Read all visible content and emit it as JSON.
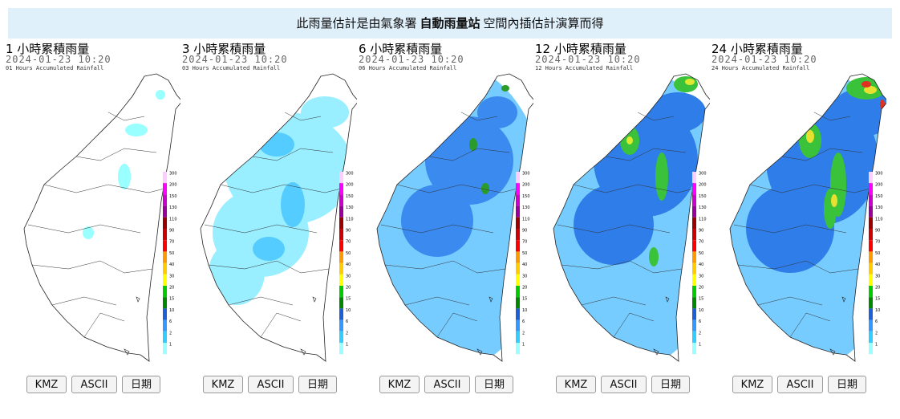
{
  "banner": {
    "text_before": "此雨量估計是由氣象署",
    "text_bold": "自動雨量站",
    "text_after": "空間內插估計演算而得"
  },
  "panels": [
    {
      "title": "1 小時累積雨量",
      "date": "2024-01-23 10:20",
      "subtitle": "01 Hours Accumulated Rainfall"
    },
    {
      "title": "3 小時累積雨量",
      "date": "2024-01-23 10:20",
      "subtitle": "03 Hours Accumulated Rainfall"
    },
    {
      "title": "6 小時累積雨量",
      "date": "2024-01-23 10:20",
      "subtitle": "06 Hours Accumulated Rainfall"
    },
    {
      "title": "12 小時累積雨量",
      "date": "2024-01-23 10:20",
      "subtitle": "12 Hours Accumulated Rainfall"
    },
    {
      "title": "24 小時累積雨量",
      "date": "2024-01-23 10:20",
      "subtitle": "24 Hours Accumulated Rainfall"
    }
  ],
  "legend_ticks": [
    300,
    200,
    150,
    130,
    110,
    90,
    70,
    50,
    40,
    30,
    20,
    15,
    10,
    6,
    2,
    1
  ],
  "buttons": [
    "KMZ",
    "ASCII",
    "日期"
  ]
}
